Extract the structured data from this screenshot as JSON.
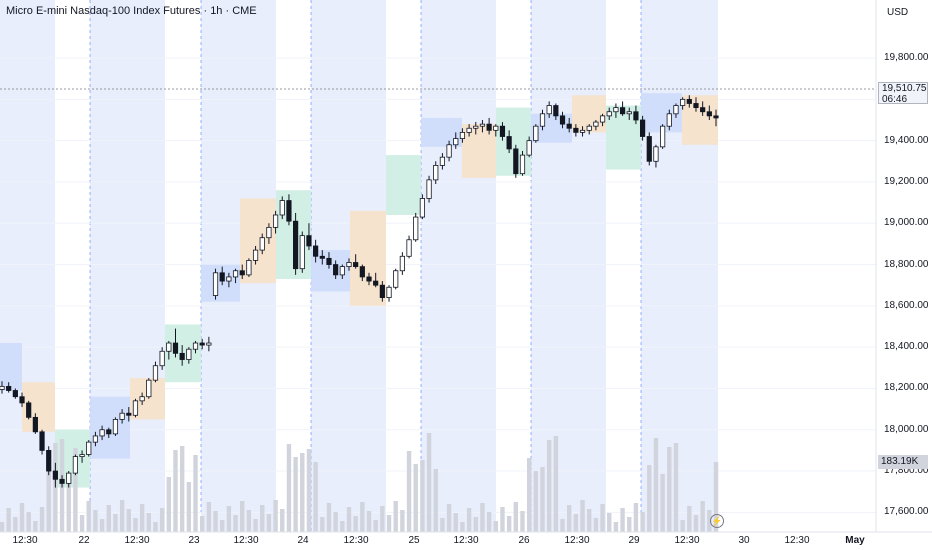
{
  "header": {
    "title": "Micro E-mini Nasdaq-100 Index Futures · 1h · CME"
  },
  "price_axis": {
    "currency": "USD",
    "ticks": [
      "19,800.00",
      "19,600.00",
      "19,400.00",
      "19,200.00",
      "19,000.00",
      "18,800.00",
      "18,600.00",
      "18,400.00",
      "18,200.00",
      "18,000.00",
      "17,800.00",
      "17,600.00"
    ]
  },
  "time_axis": {
    "labels": [
      {
        "text": "12:30",
        "bold": false
      },
      {
        "text": "22",
        "bold": false
      },
      {
        "text": "12:30",
        "bold": false
      },
      {
        "text": "23",
        "bold": false
      },
      {
        "text": "12:30",
        "bold": false
      },
      {
        "text": "24",
        "bold": false
      },
      {
        "text": "12:30",
        "bold": false
      },
      {
        "text": "25",
        "bold": false
      },
      {
        "text": "12:30",
        "bold": false
      },
      {
        "text": "26",
        "bold": false
      },
      {
        "text": "12:30",
        "bold": false
      },
      {
        "text": "29",
        "bold": false
      },
      {
        "text": "12:30",
        "bold": false
      },
      {
        "text": "30",
        "bold": false
      },
      {
        "text": "12:30",
        "bold": false
      },
      {
        "text": "May",
        "bold": true
      }
    ]
  },
  "last_price": {
    "value": "19,510.75",
    "countdown": "06:46"
  },
  "volume_tag": "183.19K",
  "colors": {
    "up": "#089981",
    "down": "#f23645",
    "candle": "#131722",
    "session": "#e8eefc",
    "box_blue": "#cfdcfb",
    "box_orange": "#f6e1cb",
    "box_green": "#cfeee4",
    "volume": "#d1d4dc"
  },
  "icons": {
    "replay": "lightning-icon"
  },
  "chart_data": {
    "type": "candlestick",
    "title": "Micro E-mini Nasdaq-100 Index Futures · 1h · CME",
    "ylim": [
      17500,
      19900
    ],
    "days": [
      "22",
      "23",
      "24",
      "25",
      "26",
      "29"
    ],
    "candles": [
      [
        18195,
        18235,
        18175,
        18210
      ],
      [
        18210,
        18230,
        18180,
        18190
      ],
      [
        18190,
        18200,
        18150,
        18160
      ],
      [
        18160,
        18180,
        18110,
        18130
      ],
      [
        18130,
        18140,
        18050,
        18060
      ],
      [
        18060,
        18080,
        17980,
        17990
      ],
      [
        17990,
        18000,
        17880,
        17900
      ],
      [
        17900,
        17920,
        17780,
        17800
      ],
      [
        17800,
        17840,
        17720,
        17760
      ],
      [
        17760,
        17780,
        17720,
        17740
      ],
      [
        17740,
        17800,
        17720,
        17790
      ],
      [
        17790,
        17880,
        17780,
        17870
      ],
      [
        17870,
        17900,
        17840,
        17880
      ],
      [
        17880,
        17950,
        17870,
        17940
      ],
      [
        17940,
        17990,
        17920,
        17970
      ],
      [
        17970,
        18020,
        17950,
        18000
      ],
      [
        18000,
        18010,
        17960,
        17980
      ],
      [
        17980,
        18060,
        17970,
        18050
      ],
      [
        18050,
        18100,
        18030,
        18080
      ],
      [
        18080,
        18110,
        18040,
        18070
      ],
      [
        18070,
        18150,
        18060,
        18140
      ],
      [
        18140,
        18180,
        18120,
        18160
      ],
      [
        18160,
        18250,
        18150,
        18240
      ],
      [
        18240,
        18330,
        18230,
        18310
      ],
      [
        18310,
        18400,
        18290,
        18380
      ],
      [
        18380,
        18430,
        18340,
        18420
      ],
      [
        18420,
        18490,
        18350,
        18370
      ],
      [
        18370,
        18410,
        18310,
        18340
      ],
      [
        18340,
        18400,
        18320,
        18390
      ],
      [
        18390,
        18430,
        18370,
        18420
      ],
      [
        18420,
        18440,
        18390,
        18410
      ],
      [
        18410,
        18450,
        18380,
        18420
      ],
      [
        18650,
        18780,
        18630,
        18760
      ],
      [
        18760,
        18790,
        18700,
        18720
      ],
      [
        18720,
        18760,
        18690,
        18740
      ],
      [
        18740,
        18780,
        18710,
        18770
      ],
      [
        18770,
        18800,
        18730,
        18750
      ],
      [
        18750,
        18830,
        18740,
        18820
      ],
      [
        18820,
        18890,
        18800,
        18870
      ],
      [
        18870,
        18950,
        18850,
        18930
      ],
      [
        18930,
        19000,
        18900,
        18980
      ],
      [
        18980,
        19060,
        18950,
        19040
      ],
      [
        19040,
        19130,
        19020,
        19110
      ],
      [
        19110,
        19140,
        18990,
        19010
      ],
      [
        19010,
        19050,
        18750,
        18780
      ],
      [
        18780,
        18960,
        18760,
        18940
      ],
      [
        18940,
        19000,
        18870,
        18890
      ],
      [
        18890,
        18920,
        18810,
        18840
      ],
      [
        18840,
        18870,
        18800,
        18830
      ],
      [
        18830,
        18860,
        18780,
        18800
      ],
      [
        18800,
        18820,
        18730,
        18750
      ],
      [
        18750,
        18800,
        18730,
        18790
      ],
      [
        18790,
        18830,
        18770,
        18810
      ],
      [
        18810,
        18850,
        18780,
        18790
      ],
      [
        18790,
        18800,
        18720,
        18740
      ],
      [
        18740,
        18760,
        18700,
        18720
      ],
      [
        18720,
        18760,
        18690,
        18700
      ],
      [
        18700,
        18720,
        18620,
        18640
      ],
      [
        18640,
        18700,
        18620,
        18690
      ],
      [
        18690,
        18780,
        18680,
        18770
      ],
      [
        18770,
        18860,
        18750,
        18840
      ],
      [
        18840,
        18940,
        18830,
        18920
      ],
      [
        18920,
        19050,
        18910,
        19030
      ],
      [
        19030,
        19140,
        19020,
        19120
      ],
      [
        19120,
        19230,
        19100,
        19210
      ],
      [
        19210,
        19300,
        19190,
        19280
      ],
      [
        19280,
        19340,
        19260,
        19320
      ],
      [
        19320,
        19400,
        19300,
        19380
      ],
      [
        19380,
        19440,
        19360,
        19410
      ],
      [
        19410,
        19460,
        19390,
        19440
      ],
      [
        19440,
        19480,
        19420,
        19460
      ],
      [
        19460,
        19490,
        19430,
        19470
      ],
      [
        19470,
        19500,
        19440,
        19480
      ],
      [
        19480,
        19510,
        19430,
        19450
      ],
      [
        19450,
        19480,
        19420,
        19470
      ],
      [
        19470,
        19490,
        19400,
        19420
      ],
      [
        19420,
        19450,
        19340,
        19360
      ],
      [
        19360,
        19380,
        19220,
        19240
      ],
      [
        19240,
        19350,
        19230,
        19330
      ],
      [
        19330,
        19420,
        19320,
        19400
      ],
      [
        19400,
        19480,
        19390,
        19470
      ],
      [
        19470,
        19550,
        19450,
        19530
      ],
      [
        19530,
        19590,
        19510,
        19570
      ],
      [
        19570,
        19580,
        19500,
        19520
      ],
      [
        19520,
        19540,
        19460,
        19480
      ],
      [
        19480,
        19510,
        19440,
        19460
      ],
      [
        19460,
        19480,
        19420,
        19440
      ],
      [
        19440,
        19470,
        19420,
        19450
      ],
      [
        19450,
        19480,
        19430,
        19470
      ],
      [
        19470,
        19500,
        19450,
        19490
      ],
      [
        19490,
        19530,
        19470,
        19520
      ],
      [
        19520,
        19560,
        19500,
        19540
      ],
      [
        19540,
        19580,
        19510,
        19560
      ],
      [
        19560,
        19590,
        19520,
        19530
      ],
      [
        19530,
        19560,
        19500,
        19540
      ],
      [
        19540,
        19570,
        19480,
        19500
      ],
      [
        19500,
        19520,
        19400,
        19420
      ],
      [
        19420,
        19440,
        19280,
        19300
      ],
      [
        19300,
        19380,
        19270,
        19370
      ],
      [
        19370,
        19480,
        19360,
        19470
      ],
      [
        19470,
        19550,
        19450,
        19530
      ],
      [
        19530,
        19580,
        19510,
        19570
      ],
      [
        19570,
        19610,
        19550,
        19600
      ],
      [
        19600,
        19620,
        19560,
        19580
      ],
      [
        19580,
        19610,
        19540,
        19560
      ],
      [
        19560,
        19590,
        19520,
        19540
      ],
      [
        19540,
        19570,
        19500,
        19520
      ],
      [
        19520,
        19550,
        19470,
        19510
      ]
    ],
    "volume_last": "183.19K"
  }
}
